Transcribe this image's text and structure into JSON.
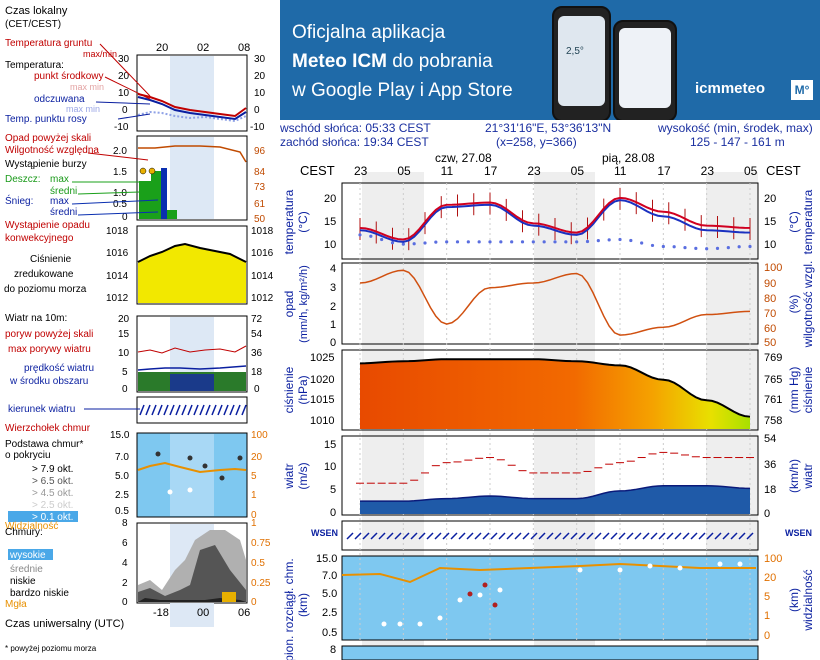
{
  "banner": {
    "line1": "Oficjalna aplikacja",
    "line2_bold": "Meteo ICM",
    "line2_rest": " do pobrania",
    "line3": "w Google Play i App Store",
    "logo": "icmmeteo",
    "logo_box": "M°",
    "phone_temp": "2,5°",
    "colors": {
      "background": "#1f6aa8",
      "text": "#ffffff"
    }
  },
  "info": {
    "sunrise": "wschód słońca: 05:33 CEST",
    "sunset": "zachód słońca: 19:34 CEST",
    "coords": "21°31'16\"E, 53°36'13\"N",
    "grid": "(x=258,  y=366)",
    "elevation_label": "wysokość (min, środek, max)",
    "elevation_values": "125 - 147 - 161 m"
  },
  "legend": {
    "local_time": "Czas lokalny",
    "local_time_zone": "(CET/CEST)",
    "top_hours": [
      "20",
      "02",
      "08"
    ],
    "bottom_hours": [
      "-18",
      "00",
      "06"
    ],
    "soil_temp": "Temperatura gruntu",
    "maxmin": "max/min",
    "temperature": "Temperatura:",
    "mid_point": "punkt środkowy",
    "max_min": "max  min",
    "felt": "odczuwana",
    "dew_point": "Temp. punktu rosy",
    "rain_above": "Opad powyżej skali",
    "humidity": "Wilgotność względna",
    "storm": "Wystąpienie burzy",
    "rain": "Deszcz:",
    "snow": "Śnieg:",
    "max": "max",
    "avg": "średni",
    "conv": "Wystąpienie opadu",
    "conv2": "konwekcyjnego",
    "pressure": "Ciśnienie",
    "pressure2": "zredukowane",
    "pressure3": "do poziomu morza",
    "wind10": "Wiatr na 10m:",
    "gust_above": "poryw powyżej skali",
    "gust_max": "max porywy wiatru",
    "wind_speed": "prędkość wiatru",
    "wind_speed2": "w środku obszaru",
    "wind_dir": "kierunek wiatru",
    "cloud_top": "Wierzchołek chmur",
    "cloud_base": "Podstawa chmur*",
    "cloud_base2": "o pokryciu",
    "okta": [
      "> 7.9 okt.",
      "> 6.5 okt.",
      "> 4.5 okt.",
      "> 2.5 okt.",
      "> 0.1 okt."
    ],
    "visibility": "Widzialność",
    "clouds": "Chmury:",
    "cloud_levels": [
      "wysokie",
      "średnie",
      "niskie",
      "bardzo niskie"
    ],
    "fog": "Mgła",
    "utc": "Czas uniwersalny (UTC)",
    "footnote": "* powyżej poziomu morza",
    "scales": {
      "temp_left": [
        "30",
        "20",
        "10",
        "0",
        "-10"
      ],
      "temp_right": [
        "30",
        "20",
        "10",
        "0",
        "-10"
      ],
      "rain_left": [
        "2.0",
        "1.5",
        "1.0",
        "0.5",
        "0"
      ],
      "rain_right": [
        "96",
        "84",
        "73",
        "61",
        "50"
      ],
      "press_left": [
        "1018",
        "1016",
        "1014",
        "1012"
      ],
      "press_right": [
        "1018",
        "1016",
        "1014",
        "1012"
      ],
      "wind_left": [
        "20",
        "15",
        "10",
        "5",
        "0"
      ],
      "wind_right": [
        "72",
        "54",
        "36",
        "18",
        "0"
      ],
      "base_left": [
        "15.0",
        "7.0",
        "5.0",
        "2.5",
        "0.5"
      ],
      "base_right": [
        "100",
        "20",
        "5",
        "1",
        "0"
      ],
      "cloud_left": [
        "8",
        "6",
        "4",
        "2",
        "0"
      ],
      "cloud_right": [
        "1",
        "0.75",
        "0.5",
        "0.25",
        "0"
      ]
    }
  },
  "main": {
    "tz": "CEST",
    "day1": "czw, 27.08",
    "day2": "pią, 28.08",
    "hours": [
      "23",
      "05",
      "11",
      "17",
      "23",
      "05",
      "11",
      "17",
      "23",
      "05"
    ],
    "panels": {
      "temp": {
        "left_label": "temperatura",
        "left_unit": "(°C)",
        "right_label": "temperatura",
        "right_unit": "(°C)",
        "ticks": [
          "20",
          "15",
          "10"
        ]
      },
      "rain": {
        "left_label": "opad",
        "left_unit": "(mm/h, kg/m²/h)",
        "right_label": "wilgotność wzgl.",
        "right_unit": "(%)",
        "left_ticks": [
          "4",
          "3",
          "2",
          "1",
          "0"
        ],
        "right_ticks": [
          "100",
          "90",
          "80",
          "70",
          "60",
          "50"
        ]
      },
      "press": {
        "left_label": "ciśnienie",
        "left_unit": "(hPa)",
        "right_label": "ciśnienie",
        "right_unit": "(mm Hg)",
        "left_ticks": [
          "1025",
          "1020",
          "1015",
          "1010"
        ],
        "right_ticks": [
          "769",
          "765",
          "761",
          "758"
        ]
      },
      "wind": {
        "left_label": "wiatr",
        "left_unit": "(m/s)",
        "right_label": "wiatr",
        "right_unit": "(km/h)",
        "left_ticks": [
          "15",
          "10",
          "5",
          "0"
        ],
        "right_ticks": [
          "54",
          "36",
          "18",
          "0"
        ]
      },
      "dir": {
        "compass": "WSEN"
      },
      "base": {
        "left_label": "pion. rozciągł. chm.",
        "left_unit": "(km)",
        "right_label": "widzialność",
        "right_unit": "(km)",
        "left_ticks": [
          "15.0",
          "7.0",
          "5.0",
          "2.5",
          "0.5"
        ],
        "right_ticks": [
          "100",
          "20",
          "5",
          "1",
          "0"
        ]
      },
      "cloud": {
        "left_ticks": [
          "8"
        ]
      }
    }
  },
  "chart_data": [
    {
      "type": "line",
      "title": "temperatura",
      "x": [
        "23",
        "05",
        "11",
        "17",
        "23",
        "05",
        "11",
        "17",
        "23",
        "05"
      ],
      "ylabel": "(°C)",
      "ylim": [
        8,
        24
      ],
      "series": [
        {
          "name": "temperatura",
          "values": [
            14.5,
            12.0,
            19.5,
            20.0,
            15.5,
            13.5,
            21.0,
            18.0,
            15.0,
            14.5
          ]
        },
        {
          "name": "odczuwana",
          "values": [
            14.0,
            11.5,
            19.0,
            19.5,
            15.0,
            13.0,
            20.5,
            17.0,
            14.0,
            13.5
          ]
        },
        {
          "name": "Temp. punktu rosy",
          "values": [
            13.0,
            11.0,
            11.5,
            11.5,
            11.5,
            11.5,
            12.0,
            10.5,
            10.0,
            10.5
          ]
        }
      ]
    },
    {
      "type": "line",
      "title": "wilgotność wzgl.",
      "x": [
        "23",
        "05",
        "11",
        "17",
        "23",
        "05",
        "11",
        "17",
        "23",
        "05"
      ],
      "ylabel": "(%)",
      "ylim": [
        50,
        100
      ],
      "series": [
        {
          "name": "wilgotność wzgl.",
          "values": [
            88,
            96,
            62,
            85,
            88,
            94,
            55,
            60,
            68,
            70
          ]
        }
      ]
    },
    {
      "type": "area",
      "title": "ciśnienie",
      "x": [
        "23",
        "05",
        "11",
        "17",
        "23",
        "05",
        "11",
        "17",
        "23",
        "05"
      ],
      "ylabel": "(hPa)",
      "ylim": [
        1008,
        1027
      ],
      "series": [
        {
          "name": "ciśnienie",
          "values": [
            1024,
            1024.5,
            1025,
            1025,
            1025,
            1024.5,
            1023.5,
            1020,
            1015,
            1011
          ]
        }
      ]
    },
    {
      "type": "line",
      "title": "wiatr",
      "x": [
        "23",
        "05",
        "11",
        "17",
        "23",
        "05",
        "11",
        "17",
        "23",
        "05"
      ],
      "ylabel": "(m/s)",
      "ylim": [
        0,
        15
      ],
      "series": [
        {
          "name": "max porywy wiatru",
          "values": [
            6,
            6,
            10,
            11,
            8,
            8,
            10,
            12,
            11,
            11
          ]
        },
        {
          "name": "prędkość wiatru",
          "values": [
            2.5,
            2.5,
            3.0,
            3.5,
            3.0,
            3.0,
            4.5,
            5.5,
            5.5,
            5.0
          ]
        }
      ]
    }
  ]
}
